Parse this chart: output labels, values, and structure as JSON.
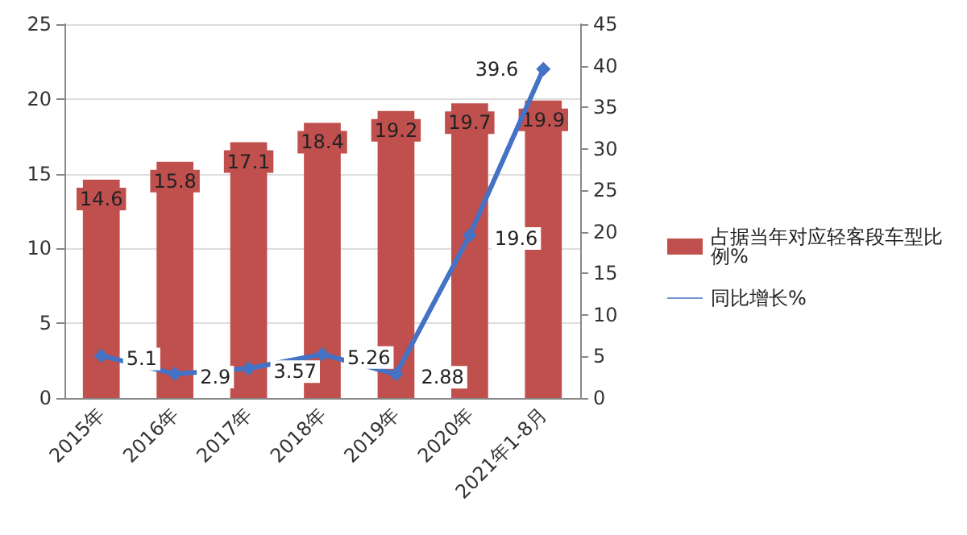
{
  "chart_data": {
    "type": "bar",
    "categories": [
      "2015年",
      "2016年",
      "2017年",
      "2018年",
      "2019年",
      "2020年",
      "2021年1-8月"
    ],
    "series": [
      {
        "name": "占据当年对应轻客段车型比例%",
        "color": "#c0504d",
        "values": [
          14.6,
          15.8,
          17.1,
          18.4,
          19.2,
          19.7,
          19.9
        ]
      },
      {
        "name": "同比增长%",
        "type": "line",
        "axis": "y2",
        "color": "#4472c4",
        "values": [
          5.1,
          2.9,
          3.57,
          5.26,
          2.88,
          19.6,
          39.6
        ]
      }
    ],
    "ylim": [
      0,
      25
    ],
    "yticks": [
      0,
      5,
      10,
      15,
      20,
      25
    ],
    "y2lim": [
      0,
      45
    ],
    "y2ticks": [
      0,
      5,
      10,
      15,
      20,
      25,
      30,
      35,
      40,
      45
    ],
    "grid": "y",
    "legend": "right",
    "marker": "diamond",
    "data_labels": true
  }
}
